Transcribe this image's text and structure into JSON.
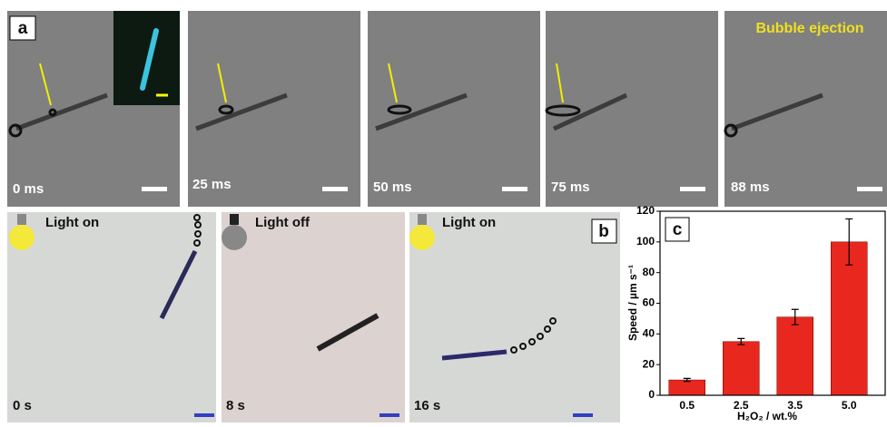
{
  "panels": {
    "a": {
      "label": "a",
      "heading": "Bubble ejection",
      "times": [
        "0 ms",
        "25 ms",
        "50 ms",
        "75 ms",
        "88 ms"
      ]
    },
    "b": {
      "label": "b",
      "states": [
        "Light on",
        "Light off",
        "Light on"
      ],
      "times": [
        "0 s",
        "8 s",
        "16 s"
      ]
    }
  },
  "chart_data": {
    "type": "bar",
    "label": "c",
    "categories": [
      "0.5",
      "2.5",
      "3.5",
      "5.0"
    ],
    "values": [
      10,
      35,
      51,
      100
    ],
    "errors": [
      1,
      2,
      5,
      15
    ],
    "color": "#e8281e",
    "ylim": [
      0,
      120
    ],
    "yticks": [
      0,
      20,
      40,
      60,
      80,
      100,
      120
    ],
    "y_label": "Speed / µm s⁻¹",
    "x_label": "H₂O₂ / wt.%"
  }
}
